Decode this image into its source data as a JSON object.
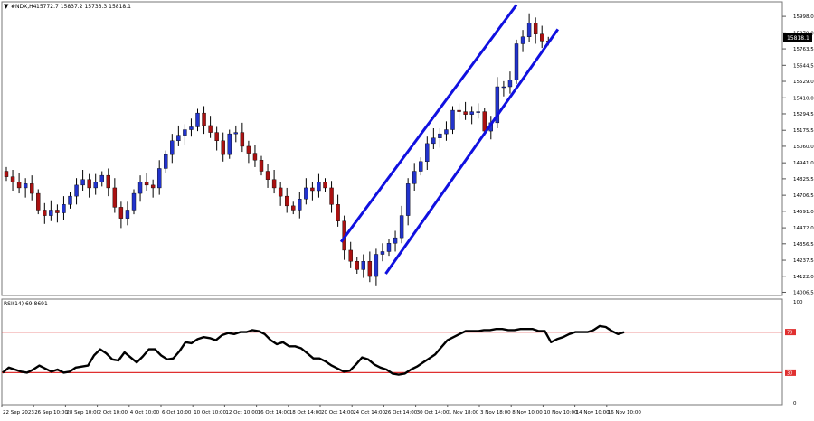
{
  "header": {
    "symbol_label": "#NDX,H4",
    "ohlc_text": "15772.7 15837.2 15733.3 15818.1"
  },
  "rsi_label": "RSI(14) 69.8691",
  "current_price_label": "15818.1",
  "colors": {
    "bull": "#2233cc",
    "bear": "#aa1111",
    "channel": "#1010e0",
    "rsi_line": "#000000",
    "level_line": "#e03030",
    "background": "#ffffff",
    "grid": "#888888"
  },
  "chart_data": [
    {
      "type": "candlestick",
      "timeframe": "H4",
      "y_ticks": [
        "15998.0",
        "15879.0",
        "15763.5",
        "15644.5",
        "15529.0",
        "15410.0",
        "15294.5",
        "15175.5",
        "15060.0",
        "14941.0",
        "14825.5",
        "14706.5",
        "14591.0",
        "14472.0",
        "14356.5",
        "14237.5",
        "14122.0",
        "14006.5"
      ],
      "ylim": [
        13990,
        16090
      ],
      "x_ticks": [
        "22 Sep 2023",
        "26 Sep 10:00",
        "28 Sep 10:00",
        "2 Oct 10:00",
        "4 Oct 10:00",
        "6 Oct 10:00",
        "10 Oct 10:00",
        "12 Oct 10:00",
        "16 Oct 14:00",
        "18 Oct 14:00",
        "20 Oct 14:00",
        "24 Oct 14:00",
        "26 Oct 14:00",
        "30 Oct 14:00",
        "1 Nov 18:00",
        "3 Nov 18:00",
        "8 Nov 10:00",
        "10 Nov 10:00",
        "14 Nov 10:00",
        "16 Nov 10:00"
      ],
      "closes": [
        14840,
        14800,
        14760,
        14790,
        14720,
        14600,
        14560,
        14600,
        14580,
        14640,
        14700,
        14780,
        14820,
        14760,
        14800,
        14850,
        14760,
        14620,
        14540,
        14600,
        14720,
        14800,
        14780,
        14760,
        14900,
        15000,
        15100,
        15140,
        15180,
        15200,
        15300,
        15210,
        15160,
        15100,
        15000,
        15150,
        15160,
        15060,
        15010,
        14960,
        14880,
        14820,
        14760,
        14700,
        14630,
        14600,
        14680,
        14760,
        14740,
        14800,
        14760,
        14640,
        14520,
        14310,
        14230,
        14170,
        14230,
        14120,
        14280,
        14300,
        14360,
        14400,
        14560,
        14790,
        14880,
        14950,
        15080,
        15120,
        15150,
        15180,
        15320,
        15310,
        15290,
        15310,
        15310,
        15170,
        15230,
        15490,
        15490,
        15540,
        15800,
        15850,
        15950,
        15870,
        15820,
        15818
      ],
      "last_close": 15818.1,
      "channel_upper": [
        {
          "bar": 52.5,
          "price": 14370
        },
        {
          "bar": 80,
          "price": 16080
        }
      ],
      "channel_lower": [
        {
          "bar": 59.5,
          "price": 14140
        },
        {
          "bar": 86.5,
          "price": 15905
        }
      ]
    },
    {
      "type": "line",
      "name": "RSI(14)",
      "y_ticks": [
        "100",
        "70",
        "30",
        "0"
      ],
      "ylim": [
        0,
        100
      ],
      "levels": [
        70,
        30
      ],
      "values": [
        30,
        35,
        33,
        31,
        30,
        33,
        37,
        34,
        31,
        33,
        30,
        31,
        35,
        36,
        37,
        47,
        53,
        49,
        43,
        42,
        50,
        45,
        40,
        46,
        53,
        53,
        47,
        43,
        44,
        51,
        60,
        59,
        63,
        65,
        64,
        62,
        67,
        69,
        68,
        70,
        70,
        72,
        71,
        68,
        62,
        58,
        60,
        56,
        56,
        54,
        49,
        44,
        44,
        41,
        37,
        34,
        31,
        32,
        38,
        45,
        43,
        38,
        35,
        33,
        29,
        28,
        29,
        33,
        36,
        40,
        44,
        48,
        55,
        62,
        65,
        68,
        71,
        71,
        71,
        72,
        72,
        73,
        73,
        72,
        72,
        73,
        73,
        73,
        71,
        71,
        60,
        63,
        65,
        68,
        70,
        70,
        70,
        72,
        76,
        75,
        71,
        68,
        69.87
      ]
    }
  ]
}
